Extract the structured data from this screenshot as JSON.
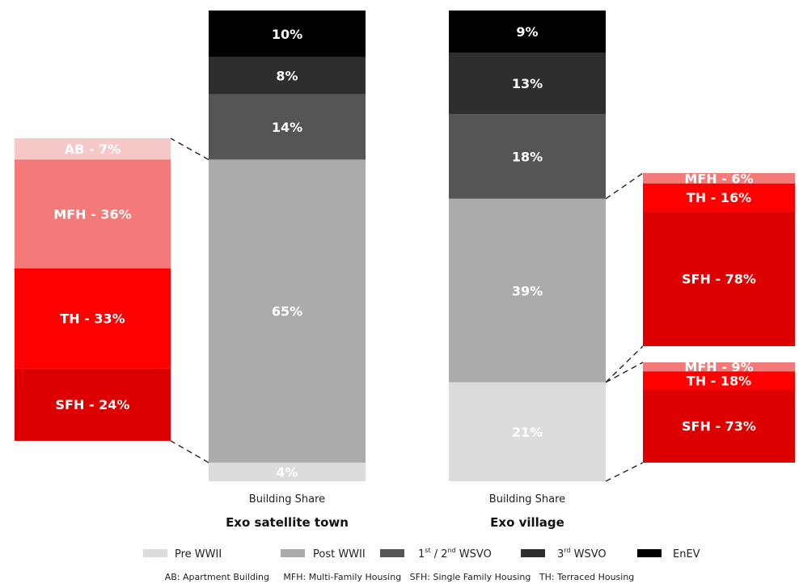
{
  "chart_data": {
    "type": "bar",
    "legend": [
      {
        "key": "pre",
        "label": "Pre WWII",
        "color": "#dcdcdc"
      },
      {
        "key": "post",
        "label": "Post WWII",
        "color": "#ababab"
      },
      {
        "key": "w12",
        "label": "1st / 2nd WSVO",
        "color": "#555555"
      },
      {
        "key": "w3",
        "label": "3rd WSVO",
        "color": "#2e2e2e"
      },
      {
        "key": "enev",
        "label": "EnEV",
        "color": "#000000"
      }
    ],
    "legend_w12": {
      "pre": "1",
      "sup1": "st",
      "mid": " / 2",
      "sup2": "nd",
      "post": " WSVO"
    },
    "legend_w3": {
      "pre": "3",
      "sup": "rd",
      "post": " WSVO"
    },
    "bars": [
      {
        "sublabel": "Building Share",
        "label": "Exo satellite town",
        "segments": [
          {
            "key": "enev",
            "value": 10,
            "label": "10%"
          },
          {
            "key": "w3",
            "value": 8,
            "label": "8%"
          },
          {
            "key": "w12",
            "value": 14,
            "label": "14%"
          },
          {
            "key": "post",
            "value": 65,
            "label": "65%"
          },
          {
            "key": "pre",
            "value": 4,
            "label": "4%"
          }
        ]
      },
      {
        "sublabel": "Building Share",
        "label": "Exo village",
        "segments": [
          {
            "key": "enev",
            "value": 9,
            "label": "9%"
          },
          {
            "key": "w3",
            "value": 13,
            "label": "13%"
          },
          {
            "key": "w12",
            "value": 18,
            "label": "18%"
          },
          {
            "key": "post",
            "value": 39,
            "label": "39%"
          },
          {
            "key": "pre",
            "value": 21,
            "label": "21%"
          }
        ]
      }
    ],
    "breakdowns": [
      {
        "of": "Exo satellite town / Post WWII",
        "segments": [
          {
            "type": "AB",
            "value": 7,
            "label": "AB - 7%",
            "color": "#f7c8c8"
          },
          {
            "type": "MFH",
            "value": 36,
            "label": "MFH - 36%",
            "color": "#f47a7a"
          },
          {
            "type": "TH",
            "value": 33,
            "label": "TH - 33%",
            "color": "#fe0000"
          },
          {
            "type": "SFH",
            "value": 24,
            "label": "SFH - 24%",
            "color": "#dc0000"
          }
        ]
      },
      {
        "of": "Exo village / Post WWII",
        "segments": [
          {
            "type": "MFH",
            "value": 6,
            "label": "MFH - 6%",
            "color": "#f47a7a"
          },
          {
            "type": "TH",
            "value": 16,
            "label": "TH - 16%",
            "color": "#fe0000"
          },
          {
            "type": "SFH",
            "value": 78,
            "label": "SFH - 78%",
            "color": "#dc0000"
          }
        ]
      },
      {
        "of": "Exo village / Pre WWII",
        "segments": [
          {
            "type": "MFH",
            "value": 9,
            "label": "MFH - 9%",
            "color": "#f47a7a"
          },
          {
            "type": "TH",
            "value": 18,
            "label": "TH - 18%",
            "color": "#fe0000"
          },
          {
            "type": "SFH",
            "value": 73,
            "label": "SFH - 73%",
            "color": "#dc0000"
          }
        ]
      }
    ],
    "footnote": "AB: Apartment Building     MFH: Multi-Family Housing   SFH: Single Family Housing   TH: Terraced Housing"
  }
}
